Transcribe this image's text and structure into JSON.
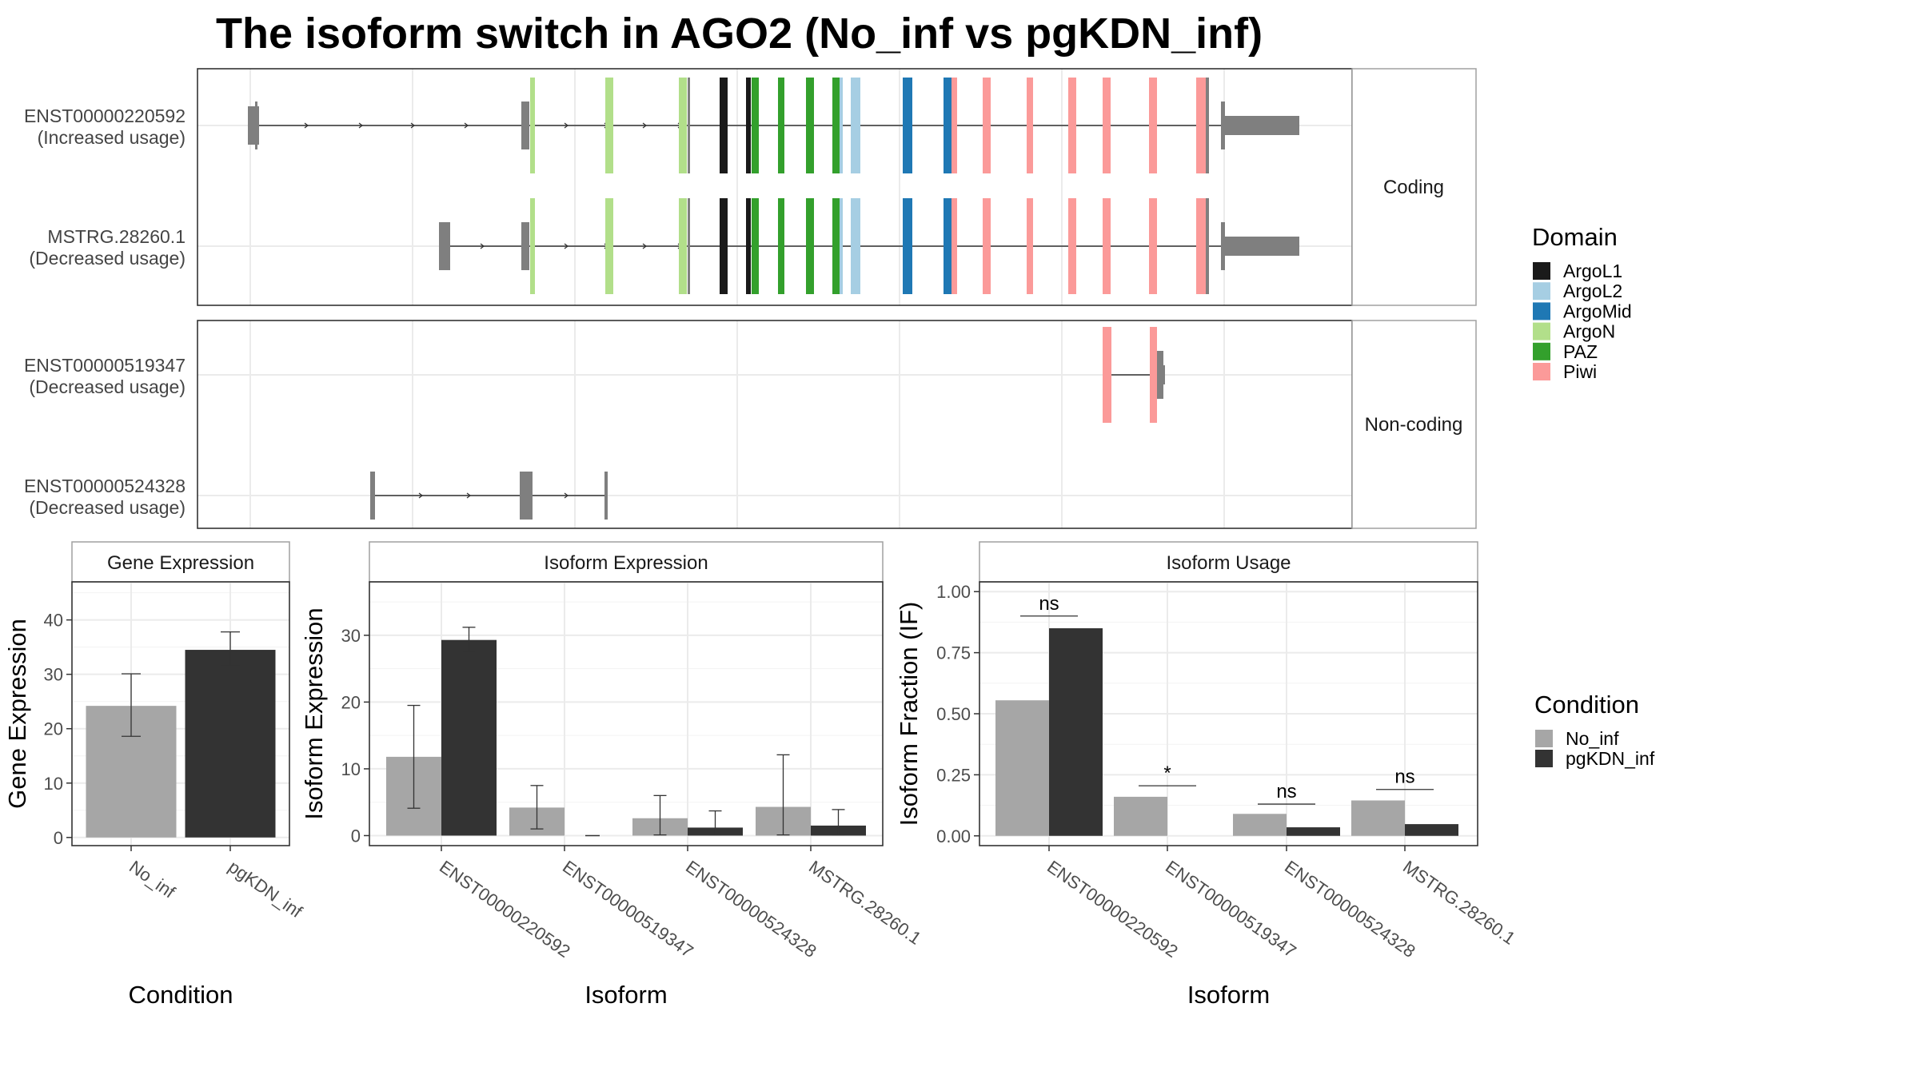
{
  "title": "The isoform switch in AGO2 (No_inf vs pgKDN_inf)",
  "colors": {
    "No_inf": "#a6a6a6",
    "pgKDN_inf": "#333333",
    "exon": "#7f7f7f",
    "ArgoL1": "#1a1a1a",
    "ArgoL2": "#a6cee3",
    "ArgoMid": "#1f78b4",
    "ArgoN": "#b2df8a",
    "PAZ": "#33a02c",
    "Piwi": "#fb9a99"
  },
  "chart_data": [
    {
      "type": "transcript_structure",
      "facets": [
        {
          "label": "Coding",
          "tracks": [
            {
              "id": "ENST00000220592",
              "usage": "(Increased usage)"
            },
            {
              "id": "MSTRG.28260.1",
              "usage": "(Decreased usage)"
            }
          ]
        },
        {
          "label": "Non-coding",
          "tracks": [
            {
              "id": "ENST00000519347",
              "usage": "(Decreased usage)"
            },
            {
              "id": "ENST00000524328",
              "usage": "(Decreased usage)"
            }
          ]
        }
      ],
      "legend": {
        "title": "Domain",
        "items": [
          "ArgoL1",
          "ArgoL2",
          "ArgoMid",
          "ArgoN",
          "PAZ",
          "Piwi"
        ]
      }
    },
    {
      "type": "bar",
      "facet": "Gene Expression",
      "xlabel": "Condition",
      "ylabel": "Gene Expression",
      "categories": [
        "No_inf",
        "pgKDN_inf"
      ],
      "values": [
        24.2,
        34.5
      ],
      "error": [
        [
          18.6,
          30.1
        ],
        [
          31.5,
          37.8
        ]
      ],
      "ylim": [
        -1.5,
        47
      ],
      "yticks": [
        0,
        10,
        20,
        30,
        40
      ]
    },
    {
      "type": "bar",
      "facet": "Isoform Expression",
      "xlabel": "Isoform",
      "ylabel": "Isoform Expression",
      "categories": [
        "ENST00000220592",
        "ENST00000519347",
        "ENST00000524328",
        "MSTRG.28260.1"
      ],
      "series": [
        {
          "name": "No_inf",
          "values": [
            11.8,
            4.2,
            2.6,
            4.3
          ],
          "error": [
            [
              4.1,
              19.5
            ],
            [
              1.0,
              7.5
            ],
            [
              0.1,
              6.0
            ],
            [
              0.1,
              12.1
            ]
          ]
        },
        {
          "name": "pgKDN_inf",
          "values": [
            29.3,
            0.0,
            1.2,
            1.5
          ],
          "error": [
            [
              27.6,
              31.2
            ],
            [
              null,
              null
            ],
            [
              0.1,
              3.7
            ],
            [
              0.1,
              3.9
            ]
          ]
        }
      ],
      "ylim": [
        -1.5,
        38
      ],
      "yticks": [
        0,
        10,
        20,
        30
      ]
    },
    {
      "type": "bar",
      "facet": "Isoform Usage",
      "xlabel": "Isoform",
      "ylabel": "Isoform Fraction (IF)",
      "categories": [
        "ENST00000220592",
        "ENST00000519347",
        "ENST00000524328",
        "MSTRG.28260.1"
      ],
      "series": [
        {
          "name": "No_inf",
          "values": [
            0.555,
            0.16,
            0.09,
            0.145
          ]
        },
        {
          "name": "pgKDN_inf",
          "values": [
            0.85,
            0.0,
            0.035,
            0.048
          ]
        }
      ],
      "significance": [
        "ns",
        "*",
        "ns",
        "ns"
      ],
      "ylim": [
        -0.04,
        1.04
      ],
      "yticks": [
        "0.00",
        "0.25",
        "0.50",
        "0.75",
        "1.00"
      ]
    }
  ],
  "condition_legend": {
    "title": "Condition",
    "items": [
      "No_inf",
      "pgKDN_inf"
    ]
  }
}
